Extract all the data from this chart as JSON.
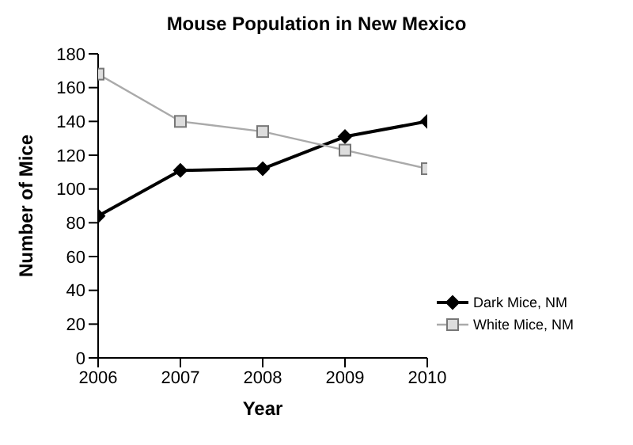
{
  "chart_data": {
    "type": "line",
    "title": "Mouse Population in New Mexico",
    "xlabel": "Year",
    "ylabel": "Number of Mice",
    "x": [
      2006,
      2007,
      2008,
      2009,
      2010
    ],
    "series": [
      {
        "name": "Dark Mice, NM",
        "color": "#000000",
        "marker": "diamond",
        "values": [
          84,
          111,
          112,
          131,
          140
        ]
      },
      {
        "name": "White Mice, NM",
        "color": "#aaaaaa",
        "marker": "square",
        "values": [
          168,
          140,
          134,
          123,
          112
        ]
      }
    ],
    "xlim": [
      2006,
      2010
    ],
    "xticks": [
      2006,
      2007,
      2008,
      2009,
      2010
    ],
    "ylim": [
      0,
      180
    ],
    "yticks": [
      0,
      20,
      40,
      60,
      80,
      100,
      120,
      140,
      160,
      180
    ],
    "grid": false,
    "legend": "right",
    "line_style": "solid"
  }
}
